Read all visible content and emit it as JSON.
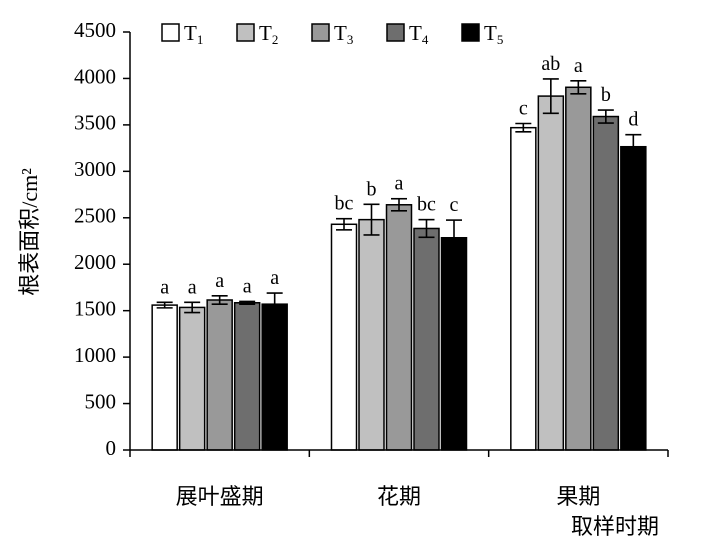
{
  "chart_data": {
    "type": "bar",
    "title": "",
    "ylabel": "根表面积/cm²",
    "xlabel": "取样时期",
    "ylim": [
      0,
      4500
    ],
    "ytick_step": 500,
    "grid": false,
    "legend_position": "top",
    "categories": [
      "展叶盛期",
      "花期",
      "果期"
    ],
    "series": [
      {
        "name": "T",
        "sub": "1",
        "color": "#ffffff",
        "values": [
          1560,
          2430,
          3470
        ],
        "errors": [
          30,
          60,
          45
        ],
        "labels": [
          "a",
          "bc",
          "c"
        ]
      },
      {
        "name": "T",
        "sub": "2",
        "color": "#c0c0c0",
        "values": [
          1535,
          2480,
          3810
        ],
        "errors": [
          55,
          165,
          185
        ],
        "labels": [
          "a",
          "b",
          "ab"
        ]
      },
      {
        "name": "T",
        "sub": "3",
        "color": "#999999",
        "values": [
          1615,
          2640,
          3905
        ],
        "errors": [
          45,
          65,
          70
        ],
        "labels": [
          "a",
          "a",
          "a"
        ]
      },
      {
        "name": "T",
        "sub": "4",
        "color": "#6e6e6e",
        "values": [
          1585,
          2385,
          3590
        ],
        "errors": [
          15,
          95,
          70
        ],
        "labels": [
          "a",
          "bc",
          "b"
        ]
      },
      {
        "name": "T",
        "sub": "5",
        "color": "#000000",
        "values": [
          1570,
          2285,
          3265
        ],
        "errors": [
          120,
          190,
          130
        ],
        "labels": [
          "a",
          "c",
          "d"
        ]
      }
    ]
  }
}
